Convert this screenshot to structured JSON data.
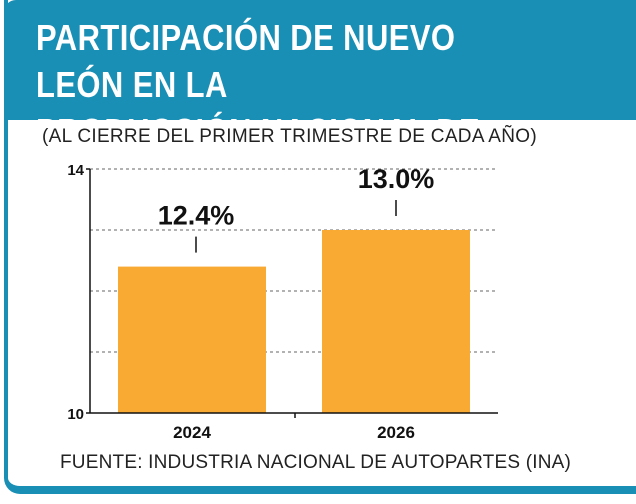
{
  "header": {
    "title": "PARTICIPACIÓN DE NUEVO LEÓN EN LA\nPRODUCCIÓN NACIONAL DE AUTOPARTES",
    "subtitle": "(AL CIERRE DEL PRIMER TRIMESTRE DE CADA AÑO)"
  },
  "footer": {
    "source": "FUENTE: INDUSTRIA NACIONAL DE AUTOPARTES (INA)"
  },
  "colors": {
    "header_bg": "#1a8fb5",
    "bar": "#f9aa33"
  },
  "chart_data": {
    "type": "bar",
    "categories": [
      "2024",
      "2026"
    ],
    "values": [
      12.4,
      13.0
    ],
    "data_labels": [
      "12.4%",
      "13.0%"
    ],
    "ylim": [
      10,
      14
    ],
    "yticks": [
      "10",
      "14"
    ],
    "grid": true,
    "title": "",
    "xlabel": "",
    "ylabel": ""
  }
}
